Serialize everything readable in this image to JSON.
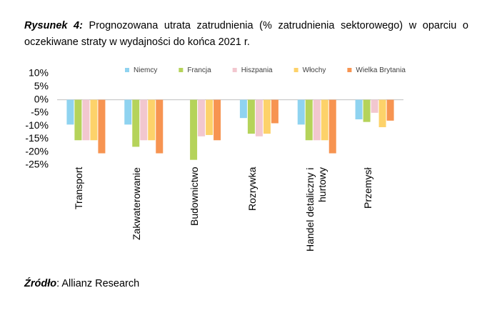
{
  "document": {
    "title_label": "Rysunek 4:",
    "title_text": "Prognozowana utrata zatrudnienia (% zatrudnienia sektorowego) w oparciu o oczekiwane straty w wydajności do końca 2021 r.",
    "source_label": "Źródło",
    "source_text": ": Allianz Research"
  },
  "chart_data": {
    "type": "bar",
    "categories": [
      "Transport",
      "Zakwaterowanie",
      "Budownictwo",
      "Rozrywka",
      "Handel detaliczny i hurtowy",
      "Przemysł"
    ],
    "series": [
      {
        "name": "Niemcy",
        "color": "#8fd3f0",
        "values": [
          -9.5,
          -9.5,
          0,
          -7,
          -9.5,
          -7.5
        ]
      },
      {
        "name": "Francja",
        "color": "#b5d35a",
        "values": [
          -15.5,
          -18,
          -23,
          -13,
          -15.5,
          -8.5
        ]
      },
      {
        "name": "Hiszpania",
        "color": "#f2c7cf",
        "values": [
          -15.5,
          -15.5,
          -14,
          -14,
          -15.5,
          -5
        ]
      },
      {
        "name": "Włochy",
        "color": "#fdd26a",
        "values": [
          -15.5,
          -15.5,
          -13.5,
          -13,
          -15.5,
          -10.5
        ]
      },
      {
        "name": "Wielka Brytania",
        "color": "#f79451",
        "values": [
          -20.5,
          -20.5,
          -15.5,
          -9,
          -20.5,
          -8
        ]
      }
    ],
    "ylim": [
      -25,
      10
    ],
    "yticks": [
      {
        "value": 10,
        "label": "10%"
      },
      {
        "value": 5,
        "label": "5%"
      },
      {
        "value": 0,
        "label": "0%"
      },
      {
        "value": -5,
        "label": "-5%"
      },
      {
        "value": -10,
        "label": "-10%"
      },
      {
        "value": -15,
        "label": "-15%"
      },
      {
        "value": -20,
        "label": "-20%"
      },
      {
        "value": -25,
        "label": "-25%"
      }
    ]
  }
}
